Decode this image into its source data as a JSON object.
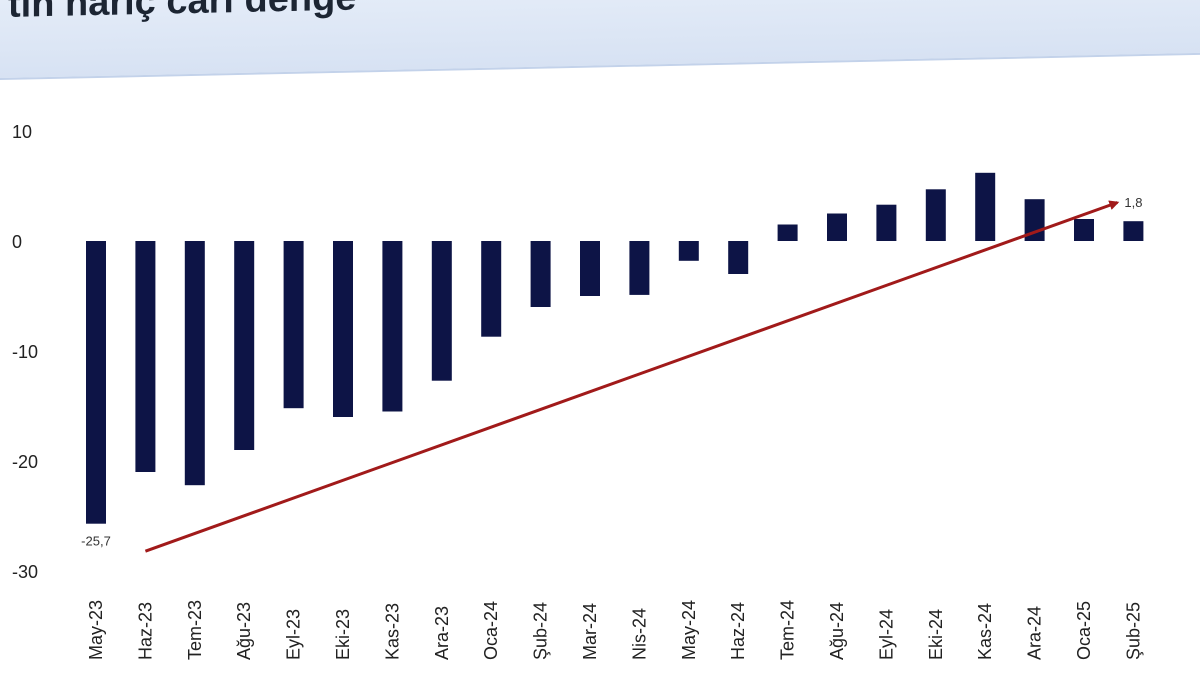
{
  "header": {
    "title": "tın hariç cari denge"
  },
  "colors": {
    "bar": "#0d1446",
    "trend": "#a11a1a"
  },
  "chart_data": {
    "type": "bar",
    "title": "",
    "xlabel": "",
    "ylabel": "",
    "ylim": [
      -30,
      10
    ],
    "yticks": [
      10,
      0,
      -10,
      -20,
      -30
    ],
    "grid": false,
    "legend": "none",
    "categories": [
      "May-23",
      "Haz-23",
      "Tem-23",
      "Ağu-23",
      "Eyl-23",
      "Eki-23",
      "Kas-23",
      "Ara-23",
      "Oca-24",
      "Şub-24",
      "Mar-24",
      "Nis-24",
      "May-24",
      "Haz-24",
      "Tem-24",
      "Ağu-24",
      "Eyl-24",
      "Eki-24",
      "Kas-24",
      "Ara-24",
      "Oca-25",
      "Şub-25"
    ],
    "values": [
      -25.7,
      -21.0,
      -22.2,
      -19.0,
      -15.2,
      -16.0,
      -15.5,
      -12.7,
      -8.7,
      -6.0,
      -5.0,
      -4.9,
      -1.8,
      -3.0,
      1.5,
      2.5,
      3.3,
      4.7,
      6.2,
      3.8,
      2.0,
      1.8
    ],
    "data_labels": [
      {
        "category": "May-23",
        "text": "-25,7"
      },
      {
        "category": "Şub-25",
        "text": "1,8"
      }
    ],
    "annotations": [
      {
        "type": "trend-arrow",
        "from": {
          "category": "Haz-23",
          "y": -28.2
        },
        "to": {
          "category": "Şub-25",
          "y": 3.5
        }
      }
    ]
  }
}
